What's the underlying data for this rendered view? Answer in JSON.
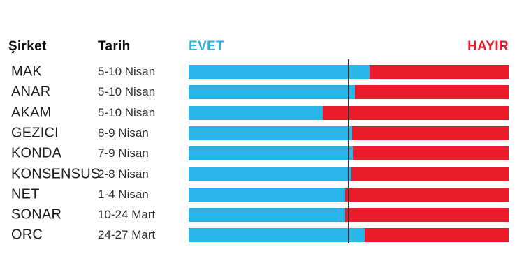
{
  "headers": {
    "company": "Şirket",
    "date": "Tarih",
    "yes": "EVET",
    "no": "HAYIR"
  },
  "colors": {
    "yes": "#29B4E7",
    "no": "#EA1C2C",
    "reference_line": "#333333",
    "header_text": "#0E0E0E"
  },
  "chart_data": {
    "type": "bar",
    "orientation": "horizontal",
    "stacked": true,
    "title": "",
    "xlabel": "",
    "ylabel": "",
    "xlim": [
      0,
      100
    ],
    "grid": false,
    "reference_line_pct": 50,
    "legend": [
      "EVET",
      "HAYIR"
    ],
    "categories": [
      "MAK",
      "ANAR",
      "AKAM",
      "GEZICI",
      "KONDA",
      "KONSENSUS",
      "NET",
      "SONAR",
      "ORC"
    ],
    "dates": [
      "5-10 Nisan",
      "5-10 Nisan",
      "5-10 Nisan",
      "8-9 Nisan",
      "7-9 Nisan",
      "2-8 Nisan",
      "1-4 Nisan",
      "10-24 Mart",
      "24-27 Mart"
    ],
    "series": [
      {
        "name": "EVET",
        "color": "#29B4E7",
        "values": [
          56.5,
          52.0,
          41.9,
          51.1,
          51.3,
          50.9,
          49.0,
          48.8,
          55.1
        ]
      },
      {
        "name": "HAYIR",
        "color": "#EA1C2C",
        "values": [
          43.5,
          48.0,
          58.1,
          48.9,
          48.7,
          49.1,
          51.0,
          51.2,
          44.9
        ]
      }
    ]
  },
  "layout_note_rows": 9
}
